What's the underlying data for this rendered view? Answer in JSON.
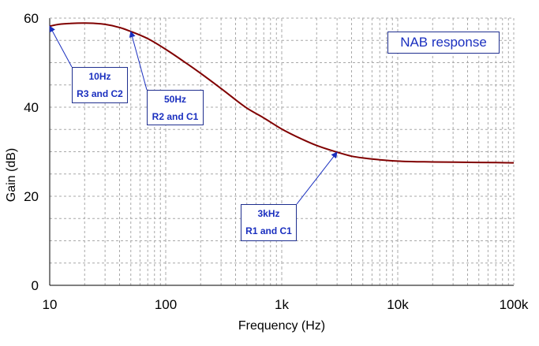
{
  "chart_data": {
    "type": "line",
    "title": "",
    "xlabel": "Frequency (Hz)",
    "ylabel": "Gain (dB)",
    "x_scale": "log",
    "xlim": [
      10,
      100000
    ],
    "ylim": [
      0,
      60
    ],
    "grid": true,
    "x_tick_labels": [
      "10",
      "100",
      "1k",
      "10k",
      "100k"
    ],
    "y_tick_labels": [
      "0",
      "20",
      "40",
      "60"
    ],
    "legend": {
      "text": "NAB response",
      "placement": "top-right"
    },
    "line_color": "#800000",
    "series": [
      {
        "x": [
          10,
          12,
          15,
          20,
          30,
          40,
          50,
          70,
          100,
          150,
          200,
          300,
          500,
          700,
          1000,
          1500,
          2000,
          3000,
          4000,
          5000,
          7000,
          10000,
          20000,
          50000,
          100000
        ],
        "y": [
          58.2,
          58.6,
          58.8,
          58.9,
          58.6,
          57.9,
          57.0,
          55.4,
          53.0,
          49.9,
          47.6,
          44.2,
          39.8,
          37.6,
          35.1,
          32.8,
          31.4,
          29.9,
          29.0,
          28.6,
          28.2,
          27.9,
          27.7,
          27.6,
          27.5
        ]
      }
    ],
    "annotations": [
      {
        "lines": [
          "10Hz",
          "R3 and C2"
        ],
        "x": 10,
        "y": 58.2
      },
      {
        "lines": [
          "50Hz",
          "R2 and C1"
        ],
        "x": 50,
        "y": 57.0
      },
      {
        "lines": [
          "3kHz",
          "R1 and C1"
        ],
        "x": 3000,
        "y": 29.9
      }
    ]
  }
}
